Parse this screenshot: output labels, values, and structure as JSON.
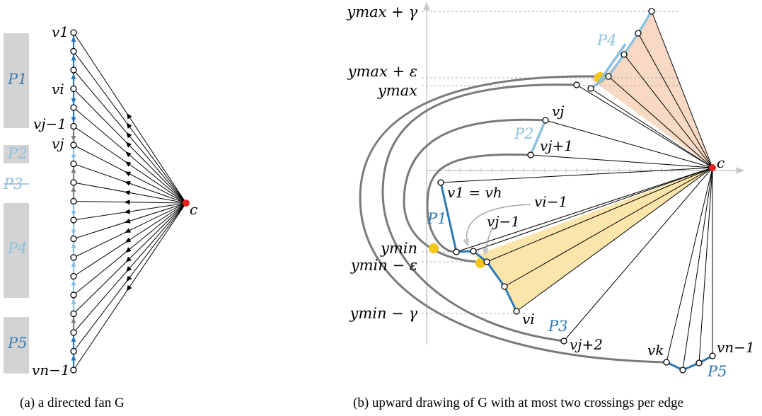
{
  "panel_a": {
    "caption": "(a) a directed fan G",
    "hub_label": "c",
    "vertex_labels": {
      "v1": "v1",
      "vi": "vi",
      "vj_minus_1": "vj−1",
      "vj": "vj",
      "vn_minus_1": "vn−1"
    },
    "groups": [
      {
        "label": "P1",
        "color": "#3b7fb4"
      },
      {
        "label": "P2",
        "color": "#8ec1e0"
      },
      {
        "label": "P3",
        "color": "#3b7fb4"
      },
      {
        "label": "P4",
        "color": "#8ec1e0"
      },
      {
        "label": "P5",
        "color": "#3b7fb4"
      }
    ],
    "path_arrow_directions": [
      "up",
      "up",
      "up",
      "down",
      "down",
      "down",
      "down",
      "up",
      "up",
      "down",
      "down",
      "up",
      "up",
      "up",
      "up",
      "up",
      "up",
      "up",
      "down",
      "up",
      "up",
      "down",
      "down",
      "down"
    ]
  },
  "panel_b": {
    "caption": "(b) upward drawing of G with at most two crossings per edge",
    "y_levels": [
      "ymax + γ",
      "ymax + ε",
      "ymax",
      "ymin",
      "ymin − ε",
      "ymin − γ"
    ],
    "vertex_labels": [
      "c",
      "vj",
      "vj+1",
      "v1 = vh",
      "vi−1",
      "vj−1",
      "vi",
      "vj+2",
      "vk",
      "vn−1"
    ],
    "path_labels": [
      "P1",
      "P2",
      "P3",
      "P4",
      "P5"
    ],
    "colors": {
      "dark_path": "#2a78b8",
      "light_path": "#8ec1e0",
      "hub": "#e8221c",
      "highlight": "#f5c518",
      "region_yellow": "#fbe5ab",
      "region_peach": "#f8d9c4",
      "curve": "#7a7a7a",
      "group_box": "#d3d3d3",
      "mid_arrow": "#808080"
    }
  }
}
